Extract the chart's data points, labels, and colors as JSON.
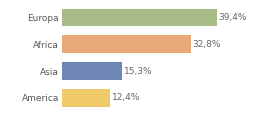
{
  "categories": [
    "America",
    "Asia",
    "Africa",
    "Europa"
  ],
  "values": [
    12.4,
    15.3,
    32.8,
    39.4
  ],
  "labels": [
    "12,4%",
    "15,3%",
    "32,8%",
    "39,4%"
  ],
  "bar_colors": [
    "#f0c96a",
    "#6e86b5",
    "#e8a97a",
    "#a8bc8a"
  ],
  "background_color": "#ffffff",
  "xlim": [
    0,
    47
  ],
  "label_fontsize": 6.5,
  "category_fontsize": 6.5,
  "bar_height": 0.65
}
